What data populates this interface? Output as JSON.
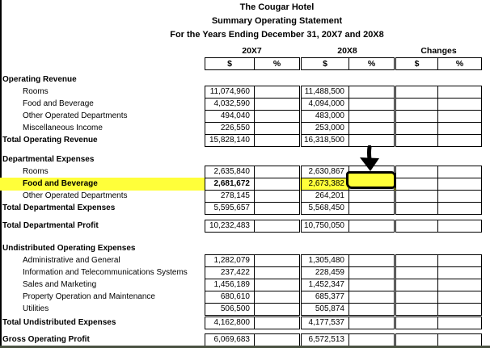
{
  "titles": {
    "line1": "The Cougar Hotel",
    "line2": "Summary Operating Statement",
    "line3": "For the Years Ending December 31, 20X7 and 20X8"
  },
  "columns": {
    "groups": [
      "20X7",
      "20X8",
      "Changes"
    ],
    "sub": [
      "$",
      "%"
    ]
  },
  "colors": {
    "highlight_yellow": "#ffff3a",
    "border_black": "#000000",
    "bottom_strip": "#4a5242"
  },
  "sections": [
    {
      "type": "group",
      "header": "Operating Revenue",
      "rows": [
        {
          "label": "Rooms",
          "v1": "11,074,960",
          "v2": "11,488,500"
        },
        {
          "label": "Food and Beverage",
          "v1": "4,032,590",
          "v2": "4,094,000"
        },
        {
          "label": "Other Operated Departments",
          "v1": "494,040",
          "v2": "483,000"
        },
        {
          "label": "Miscellaneous Income",
          "v1": "226,550",
          "v2": "253,000"
        }
      ],
      "total": {
        "label": "Total Operating Revenue",
        "v1": "15,828,140",
        "v2": "16,318,500"
      }
    },
    {
      "type": "group",
      "header": "Departmental Expenses",
      "rows": [
        {
          "label": "Rooms",
          "v1": "2,635,840",
          "v2": "2,630,867"
        },
        {
          "label": "Food and Beverage",
          "v1": "2,681,672",
          "v2": "2,673,382",
          "highlighted": true
        },
        {
          "label": "Other Operated Departments",
          "v1": "278,145",
          "v2": "264,201"
        }
      ],
      "total": {
        "label": "Total Departmental Expenses",
        "v1": "5,595,657",
        "v2": "5,568,450"
      }
    },
    {
      "type": "single",
      "row": {
        "label": "Total Departmental Profit",
        "v1": "10,232,483",
        "v2": "10,750,050"
      }
    },
    {
      "type": "group",
      "header": "Undistributed Operating Expenses",
      "rows": [
        {
          "label": "Administrative and General",
          "v1": "1,282,079",
          "v2": "1,305,480"
        },
        {
          "label": "Information and Telecommunications Systems",
          "v1": "237,422",
          "v2": "228,459"
        },
        {
          "label": "Sales and Marketing",
          "v1": "1,456,189",
          "v2": "1,452,347"
        },
        {
          "label": "Property Operation and Maintenance",
          "v1": "680,610",
          "v2": "685,377"
        },
        {
          "label": "Utilities",
          "v1": "506,500",
          "v2": "505,874"
        }
      ],
      "total": {
        "label": "Total Undistributed Expenses",
        "v1": "4,162,800",
        "v2": "4,177,537"
      }
    },
    {
      "type": "single",
      "row": {
        "label": "Gross Operating Profit",
        "v1": "6,069,683",
        "v2": "6,572,513"
      }
    }
  ],
  "annotations": {
    "selected_cell": {
      "row": "Food and Beverage",
      "column": "20X8 %",
      "value": ""
    },
    "arrow": "hand-drawn black arrow pointing down at selected 20X8 % cell"
  }
}
